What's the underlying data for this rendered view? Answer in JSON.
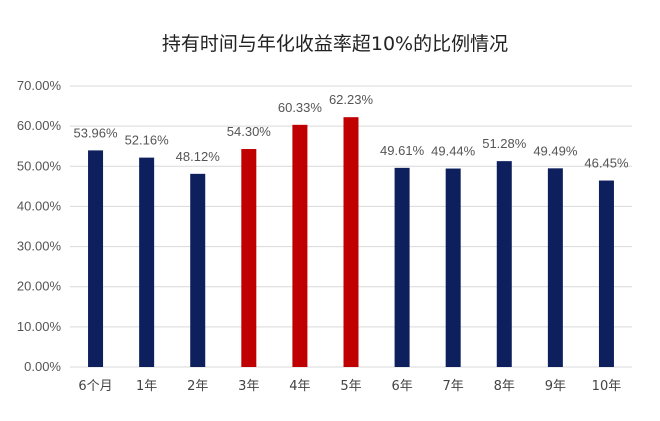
{
  "chart_data": {
    "type": "bar",
    "title": "持有时间与年化收益率超10%的比例情况",
    "xlabel": "",
    "ylabel": "",
    "categories": [
      "6个月",
      "1年",
      "2年",
      "3年",
      "4年",
      "5年",
      "6年",
      "7年",
      "8年",
      "9年",
      "10年"
    ],
    "values": [
      53.96,
      52.16,
      48.12,
      54.3,
      60.33,
      62.23,
      49.61,
      49.44,
      51.28,
      49.49,
      46.45
    ],
    "value_labels": [
      "53.96%",
      "52.16%",
      "48.12%",
      "54.30%",
      "60.33%",
      "62.23%",
      "49.61%",
      "49.44%",
      "51.28%",
      "49.49%",
      "46.45%"
    ],
    "highlighted": [
      false,
      false,
      false,
      true,
      true,
      true,
      false,
      false,
      false,
      false,
      false
    ],
    "ylim": [
      0,
      70
    ],
    "yticks": [
      0,
      10,
      20,
      30,
      40,
      50,
      60,
      70
    ],
    "ytick_labels": [
      "0.00%",
      "10.00%",
      "20.00%",
      "30.00%",
      "40.00%",
      "50.00%",
      "60.00%",
      "70.00%"
    ],
    "grid": true,
    "legend": "none",
    "colors": {
      "default": "#0d1f5c",
      "highlight": "#c00000",
      "grid": "#d9d9d9"
    }
  }
}
